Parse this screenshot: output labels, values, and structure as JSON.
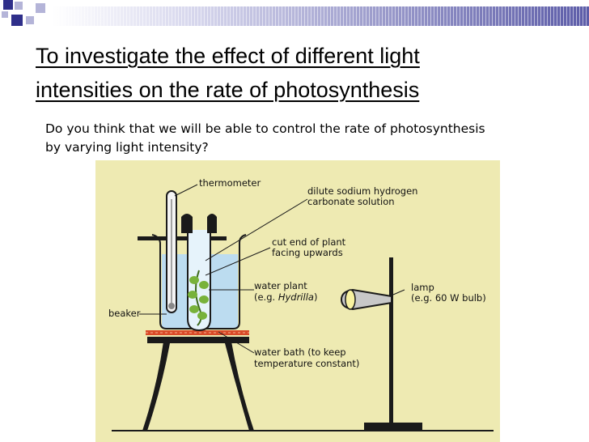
{
  "slide": {
    "title_lines": [
      "To investigate the effect of different light",
      "intensities on the rate of photosynthesis"
    ],
    "question_lines": [
      "Do you think that we will be able to control the rate of photosynthesis",
      "by varying light intensity?"
    ]
  },
  "figure": {
    "labels": {
      "thermometer": "thermometer",
      "solution_line1": "dilute sodium hydrogen",
      "solution_line2": "carbonate solution",
      "cut_end_line1": "cut end of plant",
      "cut_end_line2": "facing upwards",
      "water_plant_line1": "water plant",
      "water_plant_prefix": "(e.g. ",
      "water_plant_species": "Hydrilla",
      "water_plant_suffix": ")",
      "beaker": "beaker",
      "water_bath_line1": "water bath (to keep",
      "water_bath_line2": "temperature constant)",
      "lamp_line1": "lamp",
      "lamp_line2": "(e.g. 60 W bulb)"
    },
    "colors": {
      "background": "#eeeab2",
      "solution": "#bcdcf0",
      "plant": "#78b23a",
      "heater": "#d84a28",
      "ink": "#1a1a1a"
    }
  }
}
